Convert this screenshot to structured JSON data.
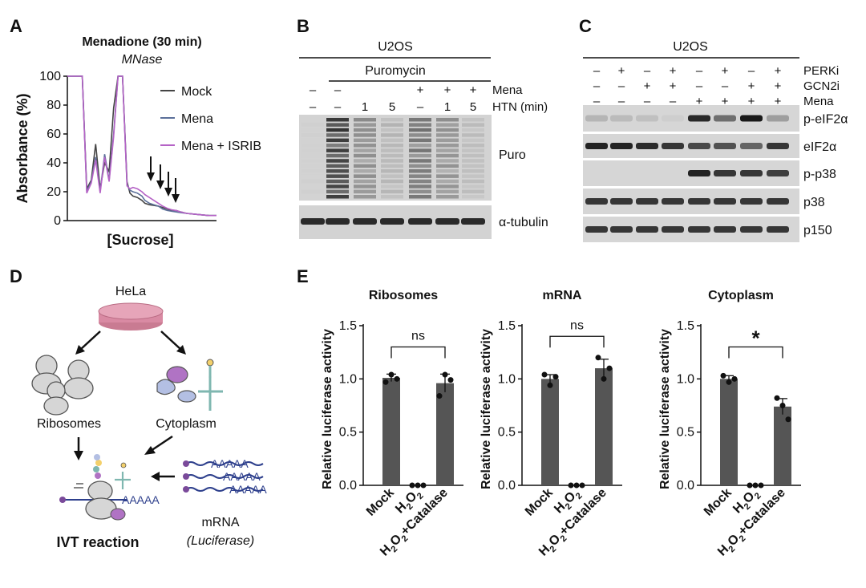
{
  "panels": {
    "A": {
      "letter": "A",
      "title": "Menadione (30 min)",
      "subtitle": "MNase"
    },
    "B": {
      "letter": "B",
      "cell_line": "U2OS",
      "group_label": "Puromycin"
    },
    "C": {
      "letter": "C",
      "cell_line": "U2OS"
    },
    "D": {
      "letter": "D"
    },
    "E": {
      "letter": "E"
    }
  },
  "chart_data": [
    {
      "type": "line",
      "panel": "A",
      "title": "Menadione (30 min)",
      "subtitle": "MNase",
      "xlabel": "[Sucrose]",
      "ylabel": "Absorbance (%)",
      "ylim": [
        0,
        100
      ],
      "yticks": [
        "0",
        "20",
        "40",
        "60",
        "80",
        "100"
      ],
      "legend_position": "top-right",
      "series": [
        {
          "name": "Mock",
          "color": "#444444",
          "x": [
            0,
            0.02,
            0.04,
            0.06,
            0.08,
            0.1,
            0.13,
            0.16,
            0.19,
            0.22,
            0.25,
            0.28,
            0.31,
            0.34,
            0.37,
            0.4,
            0.42,
            0.44,
            0.47,
            0.5,
            0.52,
            0.55,
            0.58,
            0.61,
            0.64,
            0.67,
            0.7,
            0.73,
            0.76,
            0.8,
            0.85,
            0.9,
            0.95,
            1.0
          ],
          "y": [
            100,
            100,
            100,
            100,
            100,
            100,
            22,
            28,
            53,
            22,
            40,
            34,
            78,
            100,
            100,
            27,
            19,
            17,
            16,
            14,
            12,
            11,
            10.5,
            10,
            9,
            8,
            7,
            7,
            6,
            5,
            4.5,
            4,
            3.5,
            3.5
          ]
        },
        {
          "name": "Mena",
          "color": "#5b6f99",
          "x": [
            0,
            0.02,
            0.04,
            0.06,
            0.08,
            0.1,
            0.13,
            0.16,
            0.19,
            0.22,
            0.25,
            0.28,
            0.31,
            0.34,
            0.37,
            0.4,
            0.42,
            0.44,
            0.47,
            0.5,
            0.52,
            0.55,
            0.58,
            0.61,
            0.64,
            0.67,
            0.7,
            0.73,
            0.76,
            0.8,
            0.85,
            0.9,
            0.95,
            1.0
          ],
          "y": [
            100,
            100,
            100,
            100,
            100,
            100,
            20,
            27,
            44,
            20,
            46,
            28,
            60,
            100,
            100,
            25,
            21,
            20,
            19,
            17,
            14,
            12,
            11,
            10,
            8,
            7,
            6.5,
            6,
            5.5,
            5,
            4.5,
            4,
            3.5,
            3.5
          ]
        },
        {
          "name": "Mena + ISRIB",
          "color": "#b563c6",
          "x": [
            0,
            0.02,
            0.04,
            0.06,
            0.08,
            0.1,
            0.13,
            0.16,
            0.19,
            0.22,
            0.25,
            0.28,
            0.31,
            0.34,
            0.37,
            0.4,
            0.42,
            0.44,
            0.47,
            0.5,
            0.52,
            0.55,
            0.58,
            0.61,
            0.64,
            0.67,
            0.7,
            0.73,
            0.76,
            0.8,
            0.85,
            0.9,
            0.95,
            1.0
          ],
          "y": [
            100,
            100,
            100,
            100,
            100,
            100,
            19,
            26,
            42,
            19,
            44,
            27,
            58,
            100,
            100,
            24,
            22,
            23,
            22,
            20,
            18,
            16,
            14,
            12,
            10,
            8.5,
            7.5,
            7,
            6,
            5,
            4.5,
            4,
            3.5,
            3.5
          ]
        }
      ],
      "annotations": "Arrows mark polysome peaks"
    },
    {
      "type": "bar",
      "panel": "E",
      "title": "Ribosomes",
      "categories": [
        "Mock",
        "H2O2",
        "H2O2+Catalase"
      ],
      "values": [
        1.01,
        0.0,
        0.96
      ],
      "errors": [
        0.035,
        0.0,
        0.085
      ],
      "points": [
        [
          0.97,
          1.04,
          1.0
        ],
        [
          0,
          0,
          0
        ],
        [
          0.84,
          1.04,
          0.99
        ]
      ],
      "ylabel": "Relative luciferase activity",
      "ylim": [
        0,
        1.5
      ],
      "yticks": [
        "0.0",
        "0.5",
        "1.0",
        "1.5"
      ],
      "significance": {
        "from": "Mock",
        "to": "H2O2+Catalase",
        "label": "ns"
      }
    },
    {
      "type": "bar",
      "panel": "E",
      "title": "mRNA",
      "categories": [
        "Mock",
        "H2O2",
        "H2O2+Catalase"
      ],
      "values": [
        1.0,
        0.0,
        1.1
      ],
      "errors": [
        0.04,
        0.0,
        0.085
      ],
      "points": [
        [
          1.04,
          0.94,
          1.02
        ],
        [
          0,
          0,
          0
        ],
        [
          1.2,
          1.0,
          1.1
        ]
      ],
      "ylabel": "Relative luciferase activity",
      "ylim": [
        0,
        1.5
      ],
      "yticks": [
        "0.0",
        "0.5",
        "1.0",
        "1.5"
      ],
      "significance": {
        "from": "Mock",
        "to": "H2O2+Catalase",
        "label": "ns"
      }
    },
    {
      "type": "bar",
      "panel": "E",
      "title": "Cytoplasm",
      "categories": [
        "Mock",
        "H2O2",
        "H2O2+Catalase"
      ],
      "values": [
        1.0,
        0.0,
        0.74
      ],
      "errors": [
        0.03,
        0.0,
        0.075
      ],
      "points": [
        [
          1.03,
          0.97,
          1.0
        ],
        [
          0,
          0,
          0
        ],
        [
          0.82,
          0.75,
          0.62
        ]
      ],
      "ylabel": "Relative luciferase activity",
      "ylim": [
        0,
        1.5
      ],
      "yticks": [
        "0.0",
        "0.5",
        "1.0",
        "1.5"
      ],
      "significance": {
        "from": "Mock",
        "to": "H2O2+Catalase",
        "label": "*"
      }
    }
  ],
  "blot_B": {
    "row_mena": {
      "label": "Mena",
      "signs": [
        "–",
        "–",
        "",
        "",
        "+",
        "+",
        "+"
      ]
    },
    "row_htn": {
      "label": "HTN (min)",
      "signs": [
        "–",
        "–",
        "1",
        "5",
        "–",
        "1",
        "5"
      ]
    },
    "intensities": [
      0.04,
      0.95,
      0.45,
      0.2,
      0.6,
      0.42,
      0.16
    ],
    "bands": [
      "Puro",
      "α-tubulin"
    ]
  },
  "blot_C": {
    "treatments": [
      {
        "label": "PERKi",
        "signs": [
          "–",
          "+",
          "–",
          "+",
          "–",
          "+",
          "–",
          "+"
        ]
      },
      {
        "label": "GCN2i",
        "signs": [
          "–",
          "–",
          "+",
          "+",
          "–",
          "–",
          "+",
          "+"
        ]
      },
      {
        "label": "Mena",
        "signs": [
          "–",
          "–",
          "–",
          "–",
          "+",
          "+",
          "+",
          "+"
        ]
      }
    ],
    "bands": [
      {
        "label": "p-eIF2α",
        "intensities": [
          0.18,
          0.15,
          0.12,
          0.05,
          0.92,
          0.55,
          1.0,
          0.3
        ]
      },
      {
        "label": "eIF2α",
        "intensities": [
          0.95,
          0.95,
          0.9,
          0.85,
          0.75,
          0.7,
          0.6,
          0.85
        ]
      },
      {
        "label": "p-p38",
        "intensities": [
          0.0,
          0.0,
          0.0,
          0.0,
          0.95,
          0.85,
          0.85,
          0.8
        ]
      },
      {
        "label": "p38",
        "intensities": [
          0.85,
          0.85,
          0.85,
          0.85,
          0.85,
          0.85,
          0.85,
          0.85
        ]
      },
      {
        "label": "p150",
        "intensities": [
          0.85,
          0.85,
          0.85,
          0.85,
          0.85,
          0.85,
          0.85,
          0.85
        ]
      }
    ]
  },
  "diagram_D": {
    "source": "HeLa",
    "ribosomes": "Ribosomes",
    "cytoplasm": "Cytoplasm",
    "mrna": "mRNA",
    "luciferase": "(Luciferase)",
    "polya": "AAAAA",
    "reaction": "IVT reaction",
    "colors": {
      "dish": "#d98aa3",
      "ribosome": "#cfcfcf",
      "purple": "#b073c4",
      "blue": "#a9b6dc",
      "trna": "#7fb7b0",
      "mrna": "#2d3f8c"
    }
  }
}
